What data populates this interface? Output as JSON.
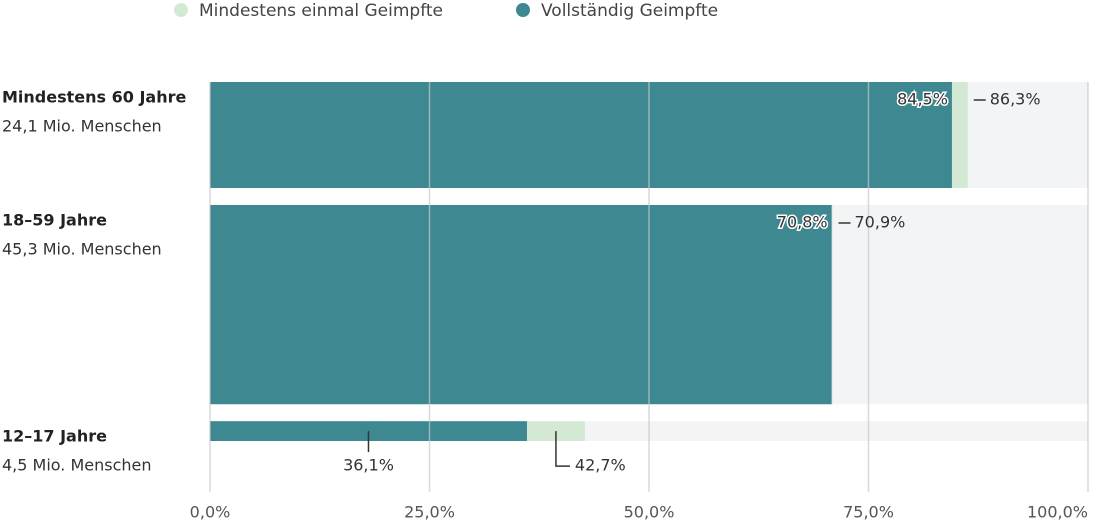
{
  "chart_data": {
    "type": "bar",
    "categories": [
      "Mindestens 60 Jahre",
      "18–59 Jahre",
      "12–17 Jahre"
    ],
    "populations": [
      24.1,
      45.3,
      4.5
    ],
    "population_labels": [
      "24,1 Mio. Menschen",
      "45,3 Mio. Menschen",
      "4,5 Mio. Menschen"
    ],
    "series": [
      {
        "name": "Mindestens einmal Geimpfte",
        "color": "#d3e9d3",
        "values": [
          86.3,
          70.9,
          42.7
        ],
        "value_labels": [
          "86,3%",
          "70,9%",
          "42,7%"
        ]
      },
      {
        "name": "Vollständig Geimpfte",
        "color": "#3d8891",
        "values": [
          84.5,
          70.8,
          36.1
        ],
        "value_labels": [
          "84,5%",
          "70,8%",
          "36,1%"
        ]
      }
    ],
    "xlim": [
      0,
      100
    ],
    "xticks": [
      {
        "value": 0,
        "label": "0,0%"
      },
      {
        "value": 25,
        "label": "25,0%"
      },
      {
        "value": 50,
        "label": "50,0%"
      },
      {
        "value": 75,
        "label": "75,0%"
      },
      {
        "value": 100,
        "label": "100,0%"
      }
    ],
    "grid": true
  }
}
